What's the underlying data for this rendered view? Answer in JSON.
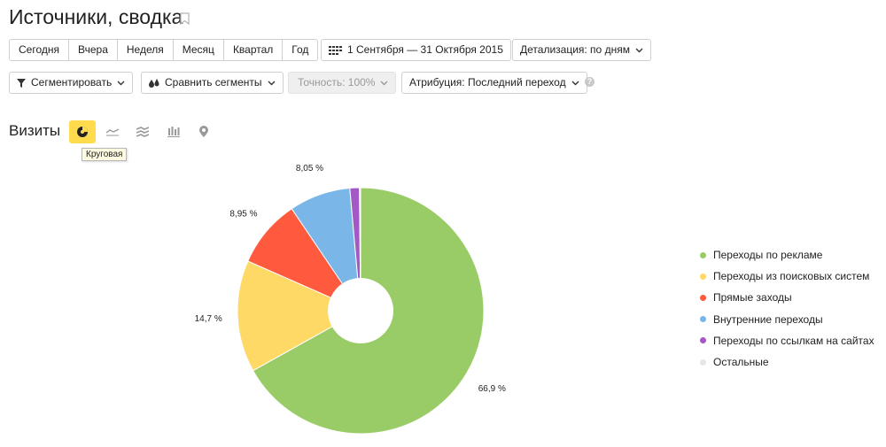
{
  "header": {
    "title": "Источники, сводка"
  },
  "period_buttons": [
    "Сегодня",
    "Вчера",
    "Неделя",
    "Месяц",
    "Квартал",
    "Год"
  ],
  "date_range": "1 Сентября — 31 Октября 2015",
  "detail": "Детализация: по дням",
  "toolbar": {
    "segment": "Сегментировать",
    "compare": "Сравнить сегменты",
    "accuracy": "Точность: 100%",
    "attribution": "Атрибуция: Последний переход",
    "help": "?"
  },
  "section": {
    "title": "Визиты",
    "tooltip": "Круговая"
  },
  "view_icons": [
    "pie-chart-icon",
    "line-chart-icon",
    "area-chart-icon",
    "bar-chart-icon",
    "map-icon"
  ],
  "chart_data": {
    "type": "pie",
    "donut": true,
    "start_angle_deg": 0,
    "direction": "clockwise",
    "slices": [
      {
        "label": "Переходы по рекламе",
        "value": 66.9,
        "display": "66,9 %",
        "color": "#99cc66"
      },
      {
        "label": "Переходы из поисковых систем",
        "value": 14.7,
        "display": "14,7 %",
        "color": "#ffd966"
      },
      {
        "label": "Прямые заходы",
        "value": 8.95,
        "display": "8,95 %",
        "color": "#ff5a3d"
      },
      {
        "label": "Внутренние переходы",
        "value": 8.05,
        "display": "8,05 %",
        "color": "#7ab7e8"
      },
      {
        "label": "Переходы по ссылкам на сайтах",
        "value": 1.25,
        "display": "",
        "color": "#a259c4"
      },
      {
        "label": "Остальные",
        "value": 0.15,
        "display": "",
        "color": "#e6e6e6"
      }
    ],
    "legend_position": "right"
  }
}
